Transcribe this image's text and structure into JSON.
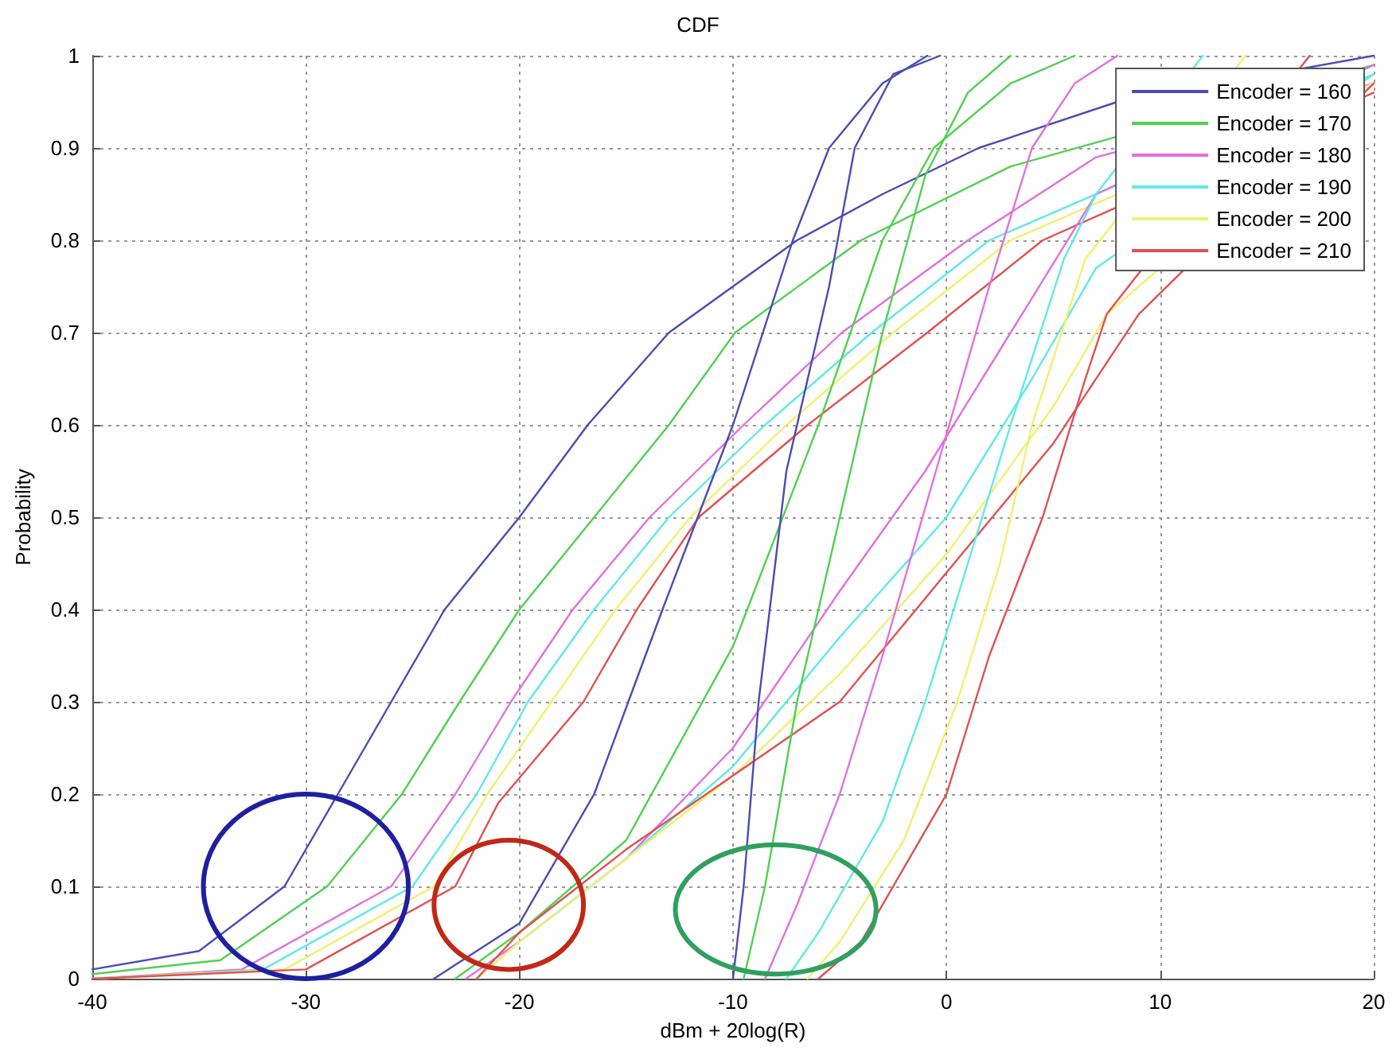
{
  "chart_data": {
    "type": "line",
    "title": "CDF",
    "xlabel": "dBm + 20log(R)",
    "ylabel": "Probability",
    "xlim": [
      -40,
      20
    ],
    "xticks": [
      -40,
      -30,
      -20,
      -10,
      0,
      10,
      20
    ],
    "ylim": [
      0,
      1
    ],
    "yticks": [
      0,
      0.1,
      0.2,
      0.3,
      0.4,
      0.5,
      0.6,
      0.7,
      0.8,
      0.9,
      1
    ],
    "grid": true,
    "legend": "top right",
    "marker": "none",
    "line_style": "solid",
    "series": [
      {
        "name": "Encoder = 160",
        "color": "#4b4bb4",
        "x": [
          -40,
          -35,
          -31,
          -28.5,
          -26,
          -23.5,
          -20,
          -16.8,
          -13,
          -7,
          -3,
          1.5,
          8,
          20
        ],
        "values": [
          0.01,
          0.03,
          0.1,
          0.2,
          0.3,
          0.4,
          0.5,
          0.6,
          0.7,
          0.8,
          0.85,
          0.9,
          0.95,
          1
        ]
      },
      {
        "name": "Encoder = 170",
        "color": "#50d050",
        "x": [
          -40,
          -34,
          -29,
          -25.5,
          -22.8,
          -20,
          -16.5,
          -13,
          -9.9,
          -4,
          3,
          20
        ],
        "values": [
          0.005,
          0.02,
          0.1,
          0.2,
          0.3,
          0.4,
          0.5,
          0.6,
          0.7,
          0.8,
          0.88,
          0.99
        ]
      },
      {
        "name": "Encoder = 180",
        "color": "#e070e0",
        "x": [
          -40,
          -33,
          -26,
          -23,
          -20.4,
          -17.5,
          -13.9,
          -9.5,
          -4.9,
          1,
          7,
          20
        ],
        "values": [
          0,
          0.01,
          0.1,
          0.2,
          0.3,
          0.4,
          0.5,
          0.6,
          0.7,
          0.8,
          0.89,
          0.97
        ]
      },
      {
        "name": "Encoder = 190",
        "color": "#60e8e8",
        "x": [
          -40,
          -32,
          -25,
          -22,
          -19.6,
          -16.5,
          -13,
          -8.5,
          -3.5,
          2,
          20
        ],
        "values": [
          0,
          0.01,
          0.1,
          0.2,
          0.3,
          0.4,
          0.5,
          0.6,
          0.7,
          0.8,
          0.98
        ]
      },
      {
        "name": "Encoder = 200",
        "color": "#f0f070",
        "x": [
          -40,
          -31,
          -24,
          -21.5,
          -18.5,
          -15.5,
          -12,
          -7.5,
          -2.5,
          3,
          20
        ],
        "values": [
          0,
          0.01,
          0.1,
          0.2,
          0.3,
          0.4,
          0.5,
          0.6,
          0.7,
          0.8,
          0.97
        ]
      },
      {
        "name": "Encoder = 210",
        "color": "#e05050",
        "x": [
          -40,
          -30,
          -23,
          -21,
          -17,
          -14.5,
          -11.6,
          -6.5,
          -0.9,
          4.5,
          20
        ],
        "values": [
          0,
          0.01,
          0.1,
          0.19,
          0.3,
          0.4,
          0.5,
          0.6,
          0.7,
          0.8,
          0.96
        ]
      },
      {
        "color": "#4b4bb4",
        "x": [
          -24,
          -20,
          -16.5,
          -13.3,
          -10,
          -7.2,
          -5.5,
          -3,
          -0.9
        ],
        "values": [
          0,
          0.06,
          0.2,
          0.4,
          0.6,
          0.8,
          0.9,
          0.97,
          1
        ]
      },
      {
        "color": "#50d050",
        "x": [
          -23,
          -20,
          -15,
          -10,
          -6,
          -3,
          -0.6,
          3,
          6
        ],
        "values": [
          0,
          0.05,
          0.15,
          0.36,
          0.6,
          0.8,
          0.9,
          0.97,
          1
        ]
      },
      {
        "color": "#e070e0",
        "x": [
          -22.5,
          -20,
          -15,
          -10,
          -5,
          -1,
          3,
          7,
          20
        ],
        "values": [
          0,
          0.04,
          0.13,
          0.25,
          0.42,
          0.55,
          0.7,
          0.85,
          0.99
        ]
      },
      {
        "color": "#60e8e8",
        "x": [
          -22,
          -20,
          -15,
          -10,
          -5,
          0,
          4,
          7,
          20
        ],
        "values": [
          0,
          0.04,
          0.13,
          0.23,
          0.37,
          0.5,
          0.65,
          0.77,
          0.98
        ]
      },
      {
        "color": "#f0f070",
        "x": [
          -22,
          -20,
          -15,
          -10,
          -5,
          0,
          5,
          7.5,
          20
        ],
        "values": [
          0,
          0.04,
          0.13,
          0.22,
          0.33,
          0.46,
          0.62,
          0.72,
          0.97
        ]
      },
      {
        "color": "#e05050",
        "x": [
          -22,
          -20,
          -15,
          -10,
          -5,
          0,
          5,
          9,
          20
        ],
        "values": [
          0,
          0.05,
          0.14,
          0.22,
          0.3,
          0.44,
          0.58,
          0.72,
          0.97
        ]
      },
      {
        "color": "#4b4bb4",
        "x": [
          -10,
          -9.5,
          -8.8,
          -7.5,
          -5.5,
          -4.3,
          -2.5,
          -0.3
        ],
        "values": [
          0,
          0.1,
          0.3,
          0.55,
          0.75,
          0.9,
          0.98,
          1
        ]
      },
      {
        "color": "#50d050",
        "x": [
          -9.5,
          -8.5,
          -7,
          -5,
          -3,
          -1,
          1,
          3
        ],
        "values": [
          0,
          0.1,
          0.3,
          0.5,
          0.7,
          0.87,
          0.96,
          1
        ]
      },
      {
        "color": "#e070e0",
        "x": [
          -8.5,
          -7,
          -5,
          -3,
          -0.5,
          2,
          4,
          6,
          8
        ],
        "values": [
          0,
          0.08,
          0.2,
          0.35,
          0.55,
          0.75,
          0.9,
          0.97,
          1
        ]
      },
      {
        "color": "#60e8e8",
        "x": [
          -7.5,
          -6,
          -3,
          -1,
          1,
          3,
          5.5,
          7,
          12
        ],
        "values": [
          0,
          0.05,
          0.17,
          0.3,
          0.45,
          0.6,
          0.78,
          0.85,
          1
        ]
      },
      {
        "color": "#f0f070",
        "x": [
          -6.5,
          -5,
          -2,
          0.5,
          2.5,
          4,
          6.5,
          14
        ],
        "values": [
          0,
          0.04,
          0.15,
          0.3,
          0.45,
          0.6,
          0.78,
          1
        ]
      },
      {
        "color": "#e05050",
        "x": [
          -6,
          -4,
          0,
          2,
          4.5,
          6.5,
          7.5,
          17
        ],
        "values": [
          0,
          0.04,
          0.2,
          0.35,
          0.5,
          0.65,
          0.72,
          1
        ]
      }
    ]
  }
}
